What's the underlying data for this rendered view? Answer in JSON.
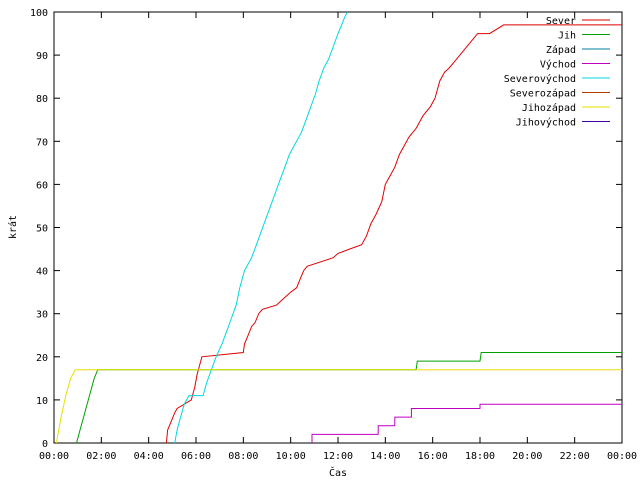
{
  "chart_data": {
    "type": "line",
    "xlabel": "Čas",
    "ylabel": "krát",
    "xlim": [
      0,
      24
    ],
    "ylim": [
      0,
      100
    ],
    "x_ticks": [
      {
        "v": 0,
        "label": "00:00"
      },
      {
        "v": 2,
        "label": "02:00"
      },
      {
        "v": 4,
        "label": "04:00"
      },
      {
        "v": 6,
        "label": "06:00"
      },
      {
        "v": 8,
        "label": "08:00"
      },
      {
        "v": 10,
        "label": "10:00"
      },
      {
        "v": 12,
        "label": "12:00"
      },
      {
        "v": 14,
        "label": "14:00"
      },
      {
        "v": 16,
        "label": "16:00"
      },
      {
        "v": 18,
        "label": "18:00"
      },
      {
        "v": 20,
        "label": "20:00"
      },
      {
        "v": 22,
        "label": "22:00"
      },
      {
        "v": 24,
        "label": "00:00"
      }
    ],
    "y_ticks": [
      0,
      10,
      20,
      30,
      40,
      50,
      60,
      70,
      80,
      90,
      100
    ],
    "grid": false,
    "legend": "top-right",
    "series": [
      {
        "name": "Sever",
        "color": "#e00000",
        "points": [
          [
            4.75,
            0
          ],
          [
            4.8,
            3
          ],
          [
            4.95,
            5
          ],
          [
            5.1,
            7
          ],
          [
            5.2,
            8
          ],
          [
            5.8,
            10
          ],
          [
            5.95,
            13
          ],
          [
            6.05,
            16
          ],
          [
            6.15,
            18
          ],
          [
            6.25,
            20
          ],
          [
            8.0,
            21
          ],
          [
            8.05,
            23
          ],
          [
            8.2,
            25
          ],
          [
            8.35,
            27
          ],
          [
            8.5,
            28
          ],
          [
            8.65,
            30
          ],
          [
            8.8,
            31
          ],
          [
            9.4,
            32
          ],
          [
            9.6,
            33
          ],
          [
            9.8,
            34
          ],
          [
            10.0,
            35
          ],
          [
            10.25,
            36
          ],
          [
            10.4,
            38
          ],
          [
            10.55,
            40
          ],
          [
            10.7,
            41
          ],
          [
            11.8,
            43
          ],
          [
            12.0,
            44
          ],
          [
            12.5,
            45
          ],
          [
            13.0,
            46
          ],
          [
            13.2,
            48
          ],
          [
            13.4,
            51
          ],
          [
            13.6,
            53
          ],
          [
            13.85,
            56
          ],
          [
            14.0,
            60
          ],
          [
            14.2,
            62
          ],
          [
            14.4,
            64
          ],
          [
            14.6,
            67
          ],
          [
            14.8,
            69
          ],
          [
            15.0,
            71
          ],
          [
            15.3,
            73
          ],
          [
            15.6,
            76
          ],
          [
            15.9,
            78
          ],
          [
            16.1,
            80
          ],
          [
            16.3,
            84
          ],
          [
            16.5,
            86
          ],
          [
            16.7,
            87
          ],
          [
            17.0,
            89
          ],
          [
            17.3,
            91
          ],
          [
            17.6,
            93
          ],
          [
            17.9,
            95
          ],
          [
            18.4,
            95
          ],
          [
            19.0,
            97
          ],
          [
            24.0,
            97
          ]
        ]
      },
      {
        "name": "Jih",
        "color": "#00a000",
        "points": [
          [
            0.95,
            0
          ],
          [
            1.1,
            3
          ],
          [
            1.25,
            6
          ],
          [
            1.4,
            9
          ],
          [
            1.55,
            12
          ],
          [
            1.7,
            15
          ],
          [
            1.85,
            17
          ],
          [
            15.3,
            17
          ],
          [
            15.35,
            19
          ],
          [
            18.0,
            19
          ],
          [
            18.05,
            21
          ],
          [
            24.0,
            21
          ]
        ]
      },
      {
        "name": "Západ",
        "color": "#0080a0",
        "points": []
      },
      {
        "name": "Východ",
        "color": "#c000c0",
        "points": [
          [
            10.9,
            0
          ],
          [
            10.9,
            2
          ],
          [
            13.7,
            2
          ],
          [
            13.7,
            4
          ],
          [
            14.4,
            4
          ],
          [
            14.4,
            6
          ],
          [
            15.1,
            6
          ],
          [
            15.1,
            8
          ],
          [
            18.0,
            8
          ],
          [
            18.0,
            9
          ],
          [
            24.0,
            9
          ]
        ]
      },
      {
        "name": "Severovýchod",
        "color": "#00d8e0",
        "points": [
          [
            5.1,
            0
          ],
          [
            5.2,
            3
          ],
          [
            5.35,
            6
          ],
          [
            5.5,
            9
          ],
          [
            5.7,
            11
          ],
          [
            6.3,
            11
          ],
          [
            6.45,
            14
          ],
          [
            6.65,
            17
          ],
          [
            6.85,
            20
          ],
          [
            7.1,
            23
          ],
          [
            7.3,
            26
          ],
          [
            7.5,
            29
          ],
          [
            7.7,
            32
          ],
          [
            7.85,
            36
          ],
          [
            8.05,
            40
          ],
          [
            8.35,
            43
          ],
          [
            8.55,
            46
          ],
          [
            8.75,
            49
          ],
          [
            8.95,
            52
          ],
          [
            9.15,
            55
          ],
          [
            9.35,
            58
          ],
          [
            9.55,
            61
          ],
          [
            9.75,
            64
          ],
          [
            9.95,
            67
          ],
          [
            10.15,
            69
          ],
          [
            10.45,
            72
          ],
          [
            10.65,
            75
          ],
          [
            10.85,
            78
          ],
          [
            11.05,
            81
          ],
          [
            11.2,
            84
          ],
          [
            11.4,
            87
          ],
          [
            11.6,
            89
          ],
          [
            11.8,
            92
          ],
          [
            12.0,
            95
          ],
          [
            12.15,
            97
          ],
          [
            12.3,
            99
          ],
          [
            12.4,
            100
          ]
        ]
      },
      {
        "name": "Severozápad",
        "color": "#b04000",
        "points": []
      },
      {
        "name": "Jihozápad",
        "color": "#e8e000",
        "points": [
          [
            0.1,
            0
          ],
          [
            0.3,
            6
          ],
          [
            0.5,
            11
          ],
          [
            0.7,
            15
          ],
          [
            0.9,
            17
          ],
          [
            24.0,
            17
          ]
        ]
      },
      {
        "name": "Jihovýchod",
        "color": "#4000a0",
        "points": []
      }
    ]
  }
}
